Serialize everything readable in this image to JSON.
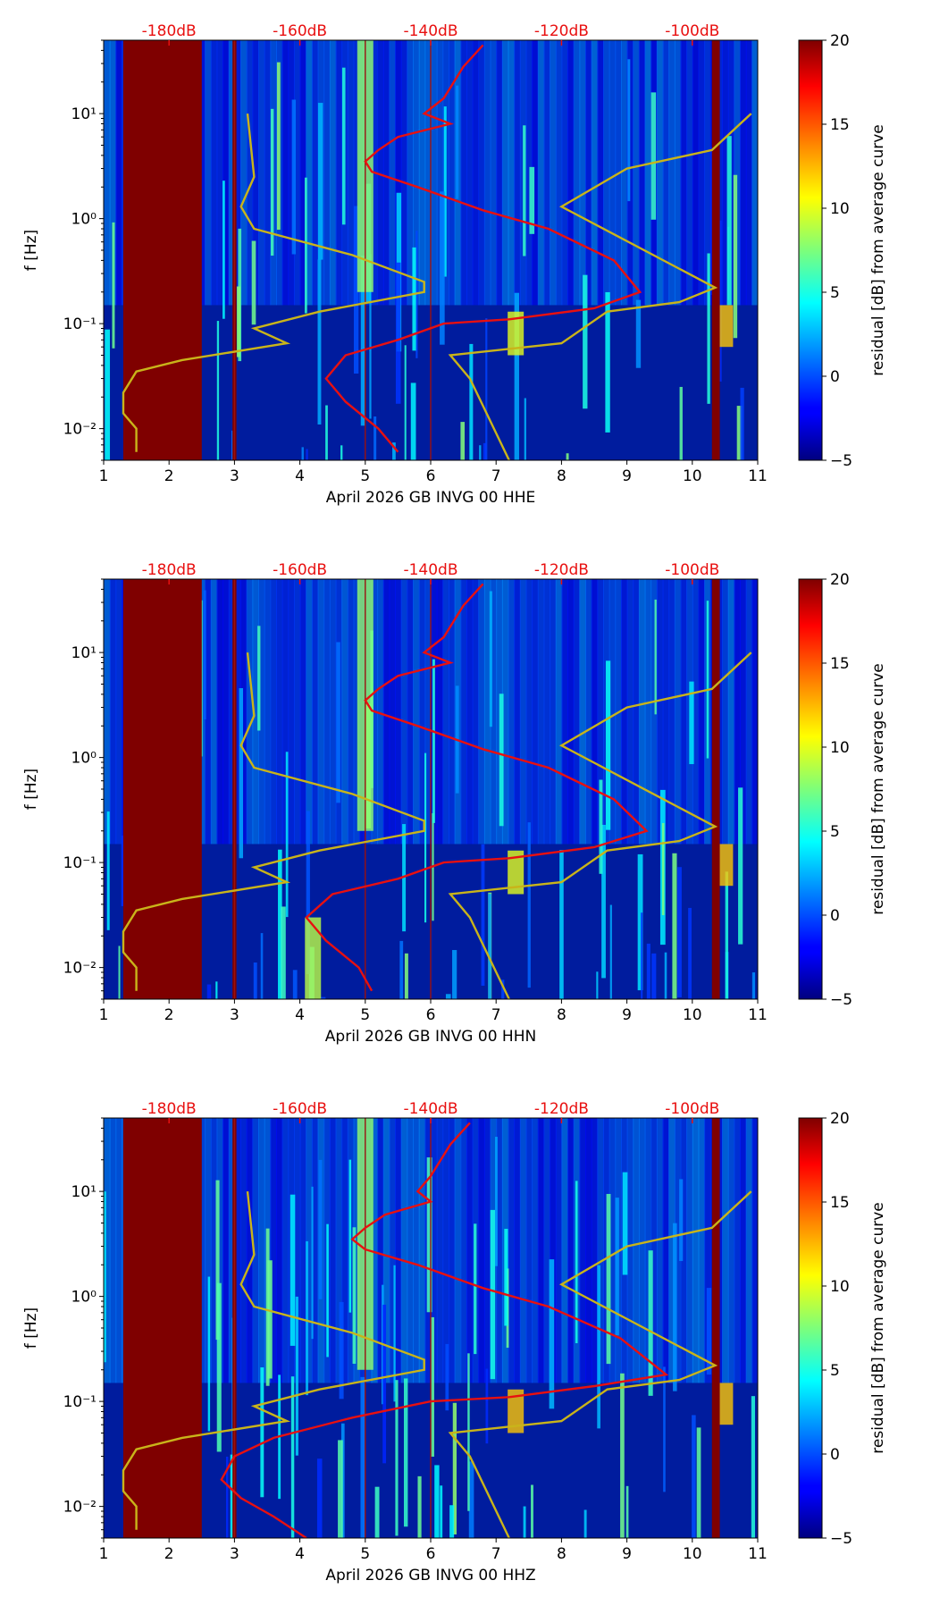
{
  "chart_data": [
    {
      "type": "heatmap",
      "xlabel": "April 2026 GB INVG 00 HHE",
      "ylabel": "f [Hz]",
      "xlim": [
        1,
        11
      ],
      "xticks": [
        "1",
        "2",
        "3",
        "4",
        "5",
        "6",
        "7",
        "8",
        "9",
        "10",
        "11"
      ],
      "yscale": "log",
      "ylim": [
        0.005,
        50
      ],
      "yticks": [
        "10⁻²",
        "10⁻¹",
        "10⁰",
        "10¹"
      ],
      "top_axis_ticks": [
        "-180dB",
        "-160dB",
        "-140dB",
        "-120dB",
        "-100dB"
      ],
      "top_axis_values": [
        -180,
        -160,
        -140,
        -120,
        -100
      ],
      "colorbar": {
        "label": "residual [dB] from average curve",
        "ticks": [
          "20",
          "15",
          "10",
          "5",
          "0",
          "−5"
        ],
        "range": [
          -5,
          20
        ]
      },
      "masked_days": [
        {
          "x0": 1.3,
          "x1": 2.5
        },
        {
          "x0": 2.97,
          "x1": 3.03
        },
        {
          "x0": 10.3,
          "x1": 10.42
        }
      ],
      "bright_features": [
        {
          "x": 5.0,
          "f_low": 0.2,
          "f_high": 50,
          "level": 8
        },
        {
          "x": 7.3,
          "f_low": 0.05,
          "f_high": 0.13,
          "level": 10
        },
        {
          "x": 10.5,
          "f_low": 0.06,
          "f_high": 0.15,
          "level": 12
        }
      ],
      "series": [
        {
          "name": "",
          "color": "#e81010",
          "points": [
            [
              6.8,
              45
            ],
            [
              6.5,
              28
            ],
            [
              6.2,
              14
            ],
            [
              5.9,
              10
            ],
            [
              6.3,
              8
            ],
            [
              5.5,
              6
            ],
            [
              5.2,
              4.5
            ],
            [
              5.0,
              3.5
            ],
            [
              5.1,
              2.8
            ],
            [
              5.8,
              2
            ],
            [
              6.8,
              1.2
            ],
            [
              7.8,
              0.8
            ],
            [
              8.8,
              0.4
            ],
            [
              9.2,
              0.2
            ],
            [
              8.5,
              0.14
            ],
            [
              7.2,
              0.11
            ],
            [
              6.2,
              0.1
            ],
            [
              5.5,
              0.07
            ],
            [
              4.7,
              0.05
            ],
            [
              4.4,
              0.03
            ],
            [
              4.7,
              0.018
            ],
            [
              5.2,
              0.01
            ],
            [
              5.5,
              0.006
            ]
          ]
        },
        {
          "name": "",
          "color": "#c9b41a",
          "points": [
            [
              3.2,
              10
            ],
            [
              3.3,
              2.5
            ],
            [
              3.1,
              1.3
            ],
            [
              3.3,
              0.8
            ],
            [
              4.8,
              0.45
            ],
            [
              5.9,
              0.25
            ],
            [
              5.9,
              0.2
            ],
            [
              4.3,
              0.13
            ],
            [
              3.3,
              0.09
            ],
            [
              3.8,
              0.065
            ],
            [
              2.2,
              0.045
            ],
            [
              1.5,
              0.035
            ],
            [
              1.3,
              0.022
            ],
            [
              1.3,
              0.014
            ],
            [
              1.5,
              0.01
            ],
            [
              1.5,
              0.006
            ]
          ]
        },
        {
          "name": "",
          "color": "#c9b41a",
          "points": [
            [
              10.9,
              10
            ],
            [
              10.3,
              4.5
            ],
            [
              9.0,
              3
            ],
            [
              8.0,
              1.3
            ],
            [
              10.35,
              0.22
            ],
            [
              9.8,
              0.16
            ],
            [
              8.7,
              0.13
            ],
            [
              8.0,
              0.065
            ],
            [
              6.3,
              0.05
            ],
            [
              6.6,
              0.03
            ],
            [
              7.2,
              0.005
            ]
          ]
        }
      ]
    },
    {
      "type": "heatmap",
      "xlabel": "April 2026 GB INVG 00 HHN",
      "ylabel": "f [Hz]",
      "xlim": [
        1,
        11
      ],
      "xticks": [
        "1",
        "2",
        "3",
        "4",
        "5",
        "6",
        "7",
        "8",
        "9",
        "10",
        "11"
      ],
      "yscale": "log",
      "ylim": [
        0.005,
        50
      ],
      "yticks": [
        "10⁻²",
        "10⁻¹",
        "10⁰",
        "10¹"
      ],
      "top_axis_ticks": [
        "-180dB",
        "-160dB",
        "-140dB",
        "-120dB",
        "-100dB"
      ],
      "top_axis_values": [
        -180,
        -160,
        -140,
        -120,
        -100
      ],
      "colorbar": {
        "label": "residual [dB] from average curve",
        "ticks": [
          "20",
          "15",
          "10",
          "5",
          "0",
          "−5"
        ],
        "range": [
          -5,
          20
        ]
      },
      "masked_days": [
        {
          "x0": 1.3,
          "x1": 2.5
        },
        {
          "x0": 2.97,
          "x1": 3.03
        },
        {
          "x0": 10.3,
          "x1": 10.42
        }
      ],
      "bright_features": [
        {
          "x": 5.0,
          "f_low": 0.2,
          "f_high": 50,
          "level": 8
        },
        {
          "x": 4.2,
          "f_low": 0.005,
          "f_high": 0.03,
          "level": 9
        },
        {
          "x": 7.3,
          "f_low": 0.05,
          "f_high": 0.13,
          "level": 10
        },
        {
          "x": 10.5,
          "f_low": 0.06,
          "f_high": 0.15,
          "level": 12
        }
      ],
      "series": [
        {
          "name": "",
          "color": "#e81010",
          "points": [
            [
              6.8,
              45
            ],
            [
              6.5,
              28
            ],
            [
              6.2,
              14
            ],
            [
              5.9,
              10
            ],
            [
              6.3,
              8
            ],
            [
              5.5,
              6
            ],
            [
              5.2,
              4.5
            ],
            [
              5.0,
              3.5
            ],
            [
              5.1,
              2.8
            ],
            [
              5.8,
              2
            ],
            [
              6.8,
              1.2
            ],
            [
              7.8,
              0.8
            ],
            [
              8.8,
              0.4
            ],
            [
              9.3,
              0.2
            ],
            [
              8.5,
              0.14
            ],
            [
              7.2,
              0.11
            ],
            [
              6.2,
              0.1
            ],
            [
              5.5,
              0.07
            ],
            [
              4.5,
              0.05
            ],
            [
              4.1,
              0.03
            ],
            [
              4.4,
              0.018
            ],
            [
              4.9,
              0.01
            ],
            [
              5.1,
              0.006
            ]
          ]
        },
        {
          "name": "",
          "color": "#c9b41a",
          "points": [
            [
              3.2,
              10
            ],
            [
              3.3,
              2.5
            ],
            [
              3.1,
              1.3
            ],
            [
              3.3,
              0.8
            ],
            [
              4.8,
              0.45
            ],
            [
              5.9,
              0.25
            ],
            [
              5.9,
              0.2
            ],
            [
              4.3,
              0.13
            ],
            [
              3.3,
              0.09
            ],
            [
              3.8,
              0.065
            ],
            [
              2.2,
              0.045
            ],
            [
              1.5,
              0.035
            ],
            [
              1.3,
              0.022
            ],
            [
              1.3,
              0.014
            ],
            [
              1.5,
              0.01
            ],
            [
              1.5,
              0.006
            ]
          ]
        },
        {
          "name": "",
          "color": "#c9b41a",
          "points": [
            [
              10.9,
              10
            ],
            [
              10.3,
              4.5
            ],
            [
              9.0,
              3
            ],
            [
              8.0,
              1.3
            ],
            [
              10.35,
              0.22
            ],
            [
              9.8,
              0.16
            ],
            [
              8.7,
              0.13
            ],
            [
              8.0,
              0.065
            ],
            [
              6.3,
              0.05
            ],
            [
              6.6,
              0.03
            ],
            [
              7.2,
              0.005
            ]
          ]
        }
      ]
    },
    {
      "type": "heatmap",
      "xlabel": "April 2026 GB INVG 00 HHZ",
      "ylabel": "f [Hz]",
      "xlim": [
        1,
        11
      ],
      "xticks": [
        "1",
        "2",
        "3",
        "4",
        "5",
        "6",
        "7",
        "8",
        "9",
        "10",
        "11"
      ],
      "yscale": "log",
      "ylim": [
        0.005,
        50
      ],
      "yticks": [
        "10⁻²",
        "10⁻¹",
        "10⁰",
        "10¹"
      ],
      "top_axis_ticks": [
        "-180dB",
        "-160dB",
        "-140dB",
        "-120dB",
        "-100dB"
      ],
      "top_axis_values": [
        -180,
        -160,
        -140,
        -120,
        -100
      ],
      "colorbar": {
        "label": "residual [dB] from average curve",
        "ticks": [
          "20",
          "15",
          "10",
          "5",
          "0",
          "−5"
        ],
        "range": [
          -5,
          20
        ]
      },
      "masked_days": [
        {
          "x0": 1.3,
          "x1": 2.5
        },
        {
          "x0": 2.97,
          "x1": 3.03
        },
        {
          "x0": 10.3,
          "x1": 10.42
        }
      ],
      "bright_features": [
        {
          "x": 5.0,
          "f_low": 0.2,
          "f_high": 50,
          "level": 8
        },
        {
          "x": 7.3,
          "f_low": 0.05,
          "f_high": 0.13,
          "level": 12
        },
        {
          "x": 10.5,
          "f_low": 0.06,
          "f_high": 0.15,
          "level": 12
        }
      ],
      "series": [
        {
          "name": "",
          "color": "#e81010",
          "points": [
            [
              6.6,
              45
            ],
            [
              6.3,
              28
            ],
            [
              6.0,
              14
            ],
            [
              5.8,
              10
            ],
            [
              6.0,
              8
            ],
            [
              5.3,
              6
            ],
            [
              5.0,
              4.5
            ],
            [
              4.8,
              3.5
            ],
            [
              5.0,
              2.8
            ],
            [
              5.8,
              2
            ],
            [
              6.8,
              1.2
            ],
            [
              7.8,
              0.8
            ],
            [
              8.9,
              0.4
            ],
            [
              9.6,
              0.18
            ],
            [
              8.5,
              0.14
            ],
            [
              7.2,
              0.11
            ],
            [
              6.0,
              0.1
            ],
            [
              4.8,
              0.07
            ],
            [
              3.6,
              0.045
            ],
            [
              3.0,
              0.03
            ],
            [
              2.8,
              0.018
            ],
            [
              3.1,
              0.012
            ],
            [
              3.6,
              0.008
            ],
            [
              4.1,
              0.005
            ]
          ]
        },
        {
          "name": "",
          "color": "#c9b41a",
          "points": [
            [
              3.2,
              10
            ],
            [
              3.3,
              2.5
            ],
            [
              3.1,
              1.3
            ],
            [
              3.3,
              0.8
            ],
            [
              4.8,
              0.45
            ],
            [
              5.9,
              0.25
            ],
            [
              5.9,
              0.2
            ],
            [
              4.3,
              0.13
            ],
            [
              3.3,
              0.09
            ],
            [
              3.8,
              0.065
            ],
            [
              2.2,
              0.045
            ],
            [
              1.5,
              0.035
            ],
            [
              1.3,
              0.022
            ],
            [
              1.3,
              0.014
            ],
            [
              1.5,
              0.01
            ],
            [
              1.5,
              0.006
            ]
          ]
        },
        {
          "name": "",
          "color": "#c9b41a",
          "points": [
            [
              10.9,
              10
            ],
            [
              10.3,
              4.5
            ],
            [
              9.0,
              3
            ],
            [
              8.0,
              1.3
            ],
            [
              10.35,
              0.22
            ],
            [
              9.8,
              0.16
            ],
            [
              8.7,
              0.13
            ],
            [
              8.0,
              0.065
            ],
            [
              6.3,
              0.05
            ],
            [
              6.6,
              0.03
            ],
            [
              7.2,
              0.005
            ]
          ]
        }
      ]
    }
  ]
}
